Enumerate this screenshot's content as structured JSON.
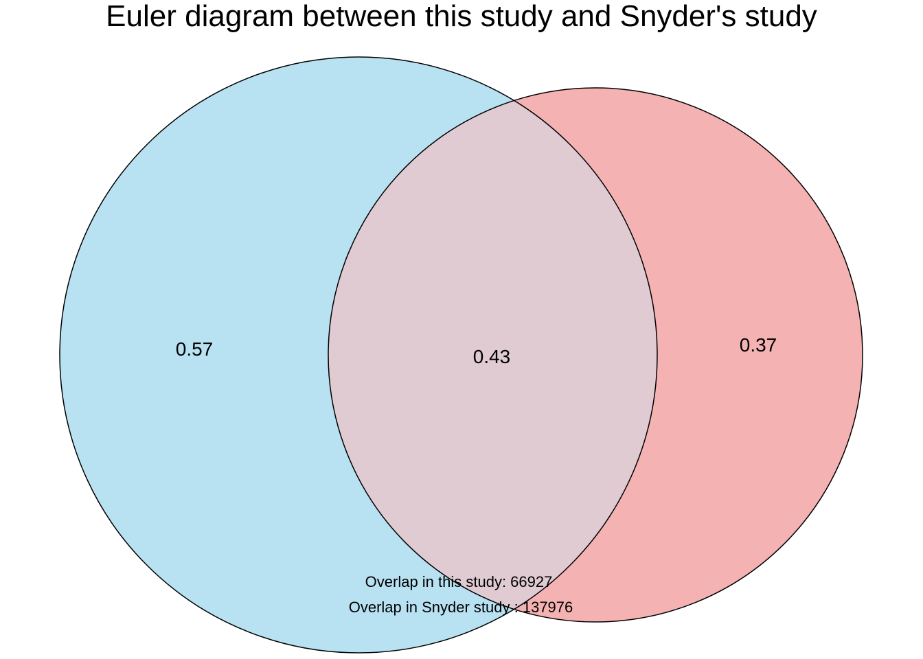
{
  "title": "Euler diagram between this study and Snyder's study",
  "colors": {
    "left_set_fill": "#b8e1f2",
    "right_set_fill": "#f4b2b3",
    "overlap_fill": "#e0cbd3",
    "outline": "#000000",
    "background": "#ffffff"
  },
  "regions": {
    "left_only": "0.57",
    "overlap": "0.43",
    "right_only": "0.37"
  },
  "notes": {
    "overlap_this_study": "Overlap in this study: 66927",
    "overlap_snyder_study": "Overlap in Snyder study : 137976"
  }
}
